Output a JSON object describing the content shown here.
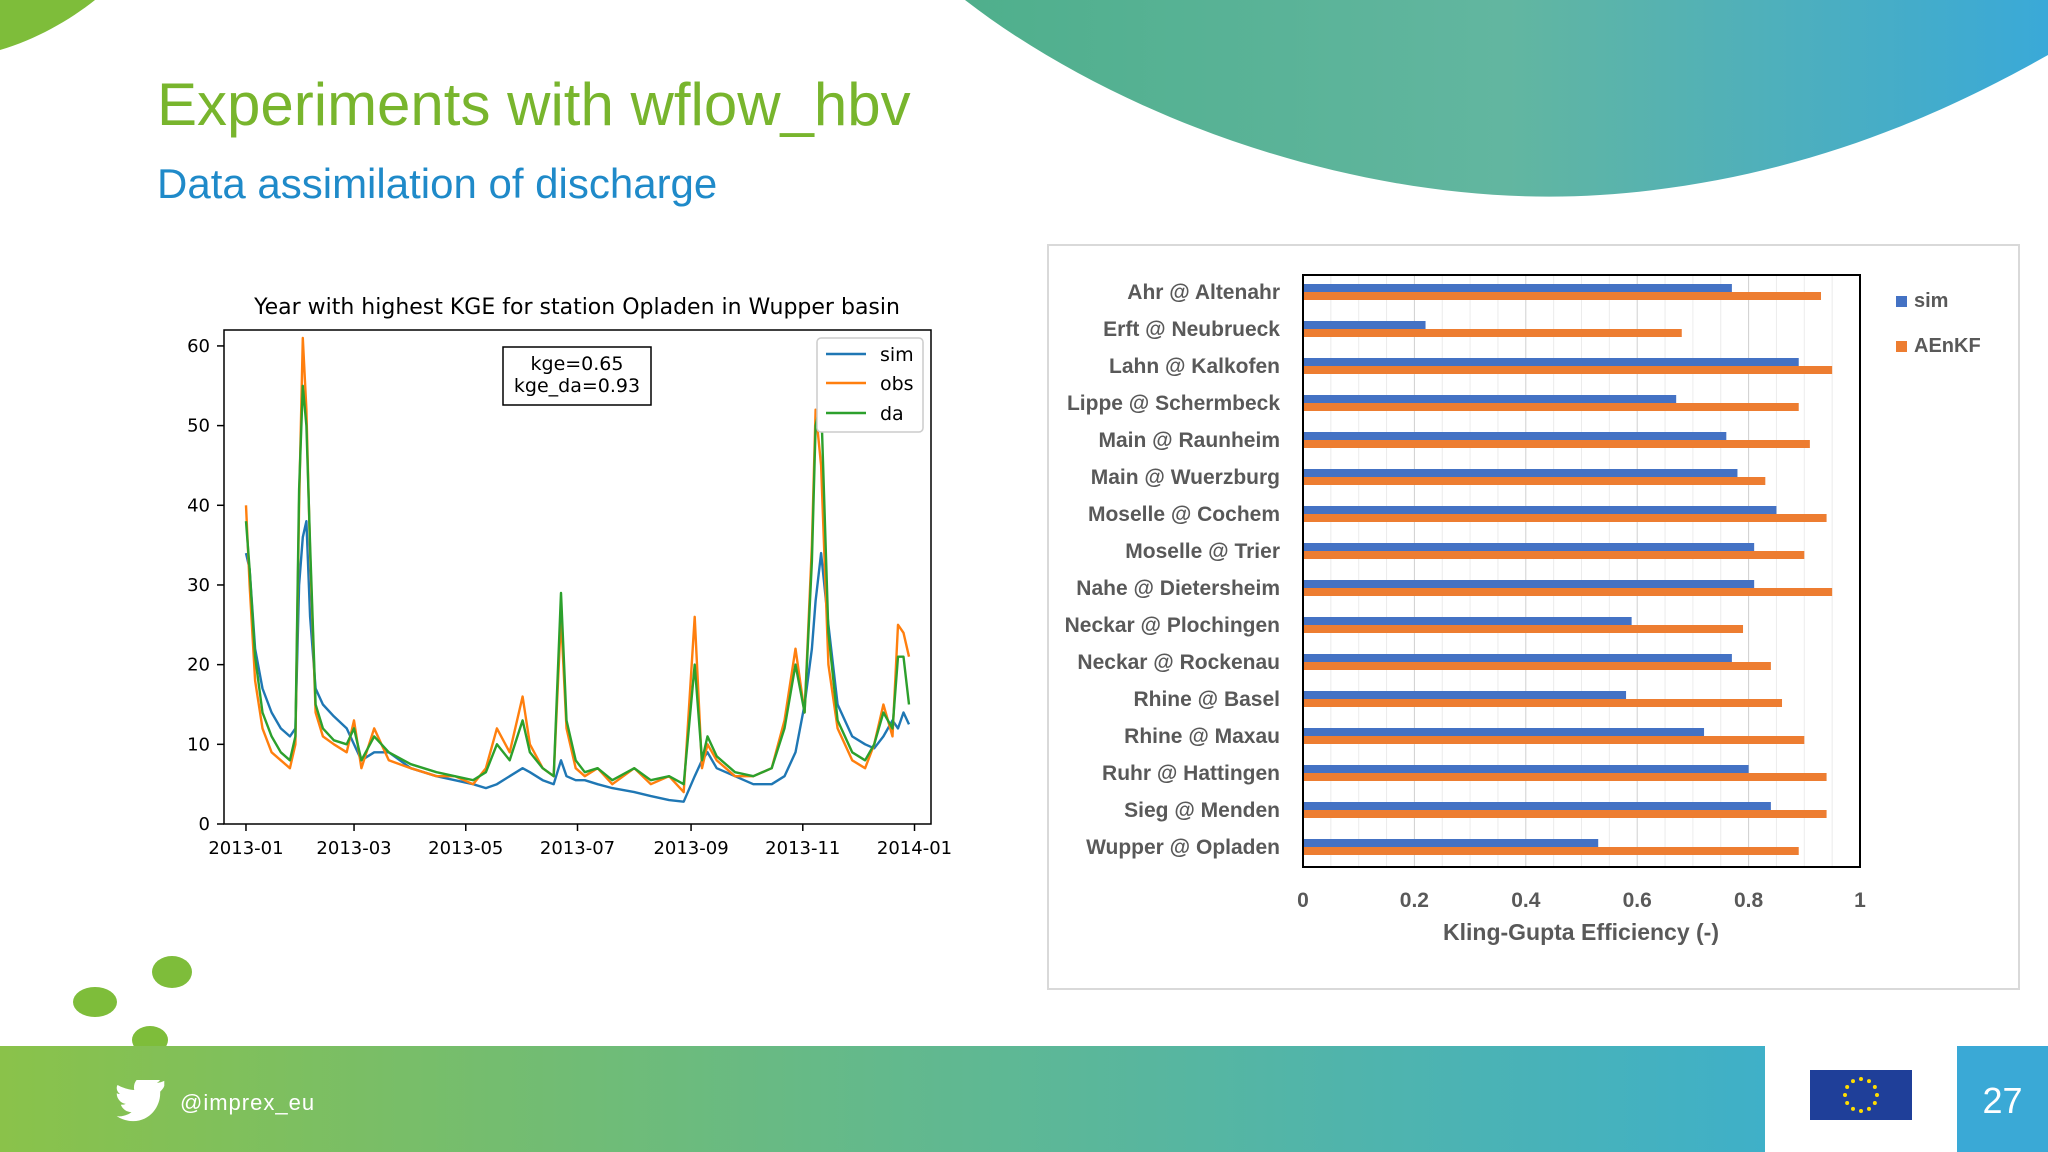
{
  "slide": {
    "title": "Experiments with wflow_hbv",
    "subtitle": "Data assimilation of discharge",
    "twitter_handle": "@imprex_eu",
    "page_number": "27"
  },
  "colors": {
    "title": "#78b52d",
    "subtitle": "#1f8ac9",
    "sim_left": "#1f77b4",
    "obs_left": "#ff7f0e",
    "da_left": "#2ca02c",
    "sim_right": "#4472c4",
    "aenkf_right": "#ed7d31"
  },
  "chart_data": [
    {
      "type": "line",
      "title": "Year with highest KGE for station Opladen in Wupper basin",
      "xlabel": "",
      "ylabel": "",
      "ylim": [
        0,
        62
      ],
      "xlim": [
        "2012-12-20",
        "2014-01-10"
      ],
      "x_ticks": [
        "2013-01",
        "2013-03",
        "2013-05",
        "2013-07",
        "2013-09",
        "2013-11",
        "2014-01"
      ],
      "y_ticks": [
        0,
        10,
        20,
        30,
        40,
        50,
        60
      ],
      "grid": false,
      "legend": "upper right",
      "annotation": [
        "kge=0.65",
        "kge_da=0.93"
      ],
      "series": [
        {
          "name": "sim",
          "x": [
            "2013-01-01",
            "2013-01-03",
            "2013-01-06",
            "2013-01-10",
            "2013-01-15",
            "2013-01-20",
            "2013-01-25",
            "2013-01-28",
            "2013-01-30",
            "2013-02-01",
            "2013-02-03",
            "2013-02-05",
            "2013-02-08",
            "2013-02-12",
            "2013-02-18",
            "2013-02-25",
            "2013-03-01",
            "2013-03-05",
            "2013-03-12",
            "2013-03-20",
            "2013-04-01",
            "2013-04-15",
            "2013-04-25",
            "2013-05-05",
            "2013-05-12",
            "2013-05-18",
            "2013-05-25",
            "2013-06-01",
            "2013-06-05",
            "2013-06-12",
            "2013-06-18",
            "2013-06-22",
            "2013-06-25",
            "2013-06-30",
            "2013-07-05",
            "2013-07-12",
            "2013-07-20",
            "2013-08-01",
            "2013-08-10",
            "2013-08-20",
            "2013-08-28",
            "2013-09-03",
            "2013-09-07",
            "2013-09-10",
            "2013-09-15",
            "2013-09-25",
            "2013-10-05",
            "2013-10-15",
            "2013-10-22",
            "2013-10-28",
            "2013-11-02",
            "2013-11-06",
            "2013-11-08",
            "2013-11-11",
            "2013-11-15",
            "2013-11-20",
            "2013-11-28",
            "2013-12-05",
            "2013-12-10",
            "2013-12-15",
            "2013-12-20",
            "2013-12-23",
            "2013-12-26",
            "2013-12-29"
          ],
          "y": [
            34,
            32,
            22,
            17,
            14,
            12,
            11,
            12,
            30,
            36,
            38,
            26,
            17,
            15,
            13.5,
            12,
            10,
            8,
            9,
            9,
            7,
            6,
            5.5,
            5,
            4.5,
            5,
            6,
            7,
            6.5,
            5.5,
            5,
            8,
            6,
            5.5,
            5.5,
            5,
            4.5,
            4,
            3.5,
            3,
            2.8,
            6,
            8,
            9,
            7,
            6,
            5,
            5,
            6,
            9,
            15,
            22,
            28,
            34,
            25,
            15,
            11,
            10,
            9.5,
            11,
            13,
            12,
            14,
            12.5
          ]
        },
        {
          "name": "obs",
          "x": [
            "2013-01-01",
            "2013-01-03",
            "2013-01-06",
            "2013-01-10",
            "2013-01-15",
            "2013-01-20",
            "2013-01-25",
            "2013-01-28",
            "2013-01-30",
            "2013-02-01",
            "2013-02-03",
            "2013-02-05",
            "2013-02-08",
            "2013-02-12",
            "2013-02-18",
            "2013-02-25",
            "2013-03-01",
            "2013-03-05",
            "2013-03-12",
            "2013-03-20",
            "2013-04-01",
            "2013-04-15",
            "2013-04-25",
            "2013-05-05",
            "2013-05-12",
            "2013-05-18",
            "2013-05-25",
            "2013-06-01",
            "2013-06-05",
            "2013-06-12",
            "2013-06-18",
            "2013-06-22",
            "2013-06-25",
            "2013-06-30",
            "2013-07-05",
            "2013-07-12",
            "2013-07-20",
            "2013-08-01",
            "2013-08-10",
            "2013-08-20",
            "2013-08-28",
            "2013-09-03",
            "2013-09-07",
            "2013-09-10",
            "2013-09-15",
            "2013-09-25",
            "2013-10-05",
            "2013-10-15",
            "2013-10-22",
            "2013-10-28",
            "2013-11-02",
            "2013-11-06",
            "2013-11-08",
            "2013-11-11",
            "2013-11-15",
            "2013-11-20",
            "2013-11-28",
            "2013-12-05",
            "2013-12-10",
            "2013-12-15",
            "2013-12-20",
            "2013-12-23",
            "2013-12-26",
            "2013-12-29"
          ],
          "y": [
            40,
            30,
            18,
            12,
            9,
            8,
            7,
            10,
            40,
            61,
            52,
            34,
            14,
            11,
            10,
            9,
            13,
            7,
            12,
            8,
            7,
            6,
            6,
            5,
            7,
            12,
            9,
            16,
            10,
            7,
            6,
            26,
            12,
            7,
            6,
            7,
            5,
            7,
            5,
            6,
            4,
            26,
            7,
            10,
            8,
            6,
            6,
            7,
            13,
            22,
            14,
            35,
            52,
            45,
            20,
            12,
            8,
            7,
            10,
            15,
            11,
            25,
            24,
            21
          ]
        },
        {
          "name": "da",
          "x": [
            "2013-01-01",
            "2013-01-03",
            "2013-01-06",
            "2013-01-10",
            "2013-01-15",
            "2013-01-20",
            "2013-01-25",
            "2013-01-28",
            "2013-01-30",
            "2013-02-01",
            "2013-02-03",
            "2013-02-05",
            "2013-02-08",
            "2013-02-12",
            "2013-02-18",
            "2013-02-25",
            "2013-03-01",
            "2013-03-05",
            "2013-03-12",
            "2013-03-20",
            "2013-04-01",
            "2013-04-15",
            "2013-04-25",
            "2013-05-05",
            "2013-05-12",
            "2013-05-18",
            "2013-05-25",
            "2013-06-01",
            "2013-06-05",
            "2013-06-12",
            "2013-06-18",
            "2013-06-22",
            "2013-06-25",
            "2013-06-30",
            "2013-07-05",
            "2013-07-12",
            "2013-07-20",
            "2013-08-01",
            "2013-08-10",
            "2013-08-20",
            "2013-08-28",
            "2013-09-03",
            "2013-09-07",
            "2013-09-10",
            "2013-09-15",
            "2013-09-25",
            "2013-10-05",
            "2013-10-15",
            "2013-10-22",
            "2013-10-28",
            "2013-11-02",
            "2013-11-06",
            "2013-11-08",
            "2013-11-11",
            "2013-11-15",
            "2013-11-20",
            "2013-11-28",
            "2013-12-05",
            "2013-12-10",
            "2013-12-15",
            "2013-12-20",
            "2013-12-23",
            "2013-12-26",
            "2013-12-29"
          ],
          "y": [
            38,
            32,
            21,
            14,
            11,
            9,
            8,
            11,
            42,
            55,
            50,
            35,
            15,
            12,
            10.5,
            10,
            12,
            8,
            11,
            9,
            7.5,
            6.5,
            6,
            5.5,
            6.5,
            10,
            8,
            13,
            9,
            7,
            6,
            29,
            13,
            8,
            6.5,
            7,
            5.5,
            7,
            5.5,
            6,
            5,
            20,
            8,
            11,
            8.5,
            6.5,
            6,
            7,
            12,
            20,
            14,
            33,
            50,
            53,
            24,
            13,
            9,
            8,
            10,
            14,
            12,
            21,
            21,
            15
          ]
        }
      ]
    },
    {
      "type": "bar",
      "orientation": "horizontal",
      "title": "",
      "xlabel": "Kling-Gupta Efficiency (-)",
      "ylabel": "",
      "xlim": [
        0,
        1
      ],
      "x_ticks": [
        "0",
        "0.2",
        "0.4",
        "0.6",
        "0.8",
        "1"
      ],
      "grid": true,
      "legend": "right",
      "categories": [
        "Ahr @ Altenahr",
        "Erft @ Neubrueck",
        "Lahn @ Kalkofen",
        "Lippe @ Schermbeck",
        "Main @ Raunheim",
        "Main @ Wuerzburg",
        "Moselle @ Cochem",
        "Moselle @ Trier",
        "Nahe @ Dietersheim",
        "Neckar @ Plochingen",
        "Neckar @ Rockenau",
        "Rhine @ Basel",
        "Rhine @ Maxau",
        "Ruhr @ Hattingen",
        "Sieg @ Menden",
        "Wupper @ Opladen"
      ],
      "series": [
        {
          "name": "sim",
          "values": [
            0.77,
            0.22,
            0.89,
            0.67,
            0.76,
            0.78,
            0.85,
            0.81,
            0.81,
            0.59,
            0.77,
            0.58,
            0.72,
            0.8,
            0.84,
            0.53
          ]
        },
        {
          "name": "AEnKF",
          "values": [
            0.93,
            0.68,
            0.95,
            0.89,
            0.91,
            0.83,
            0.94,
            0.9,
            0.95,
            0.79,
            0.84,
            0.86,
            0.9,
            0.94,
            0.94,
            0.89
          ]
        }
      ]
    }
  ]
}
